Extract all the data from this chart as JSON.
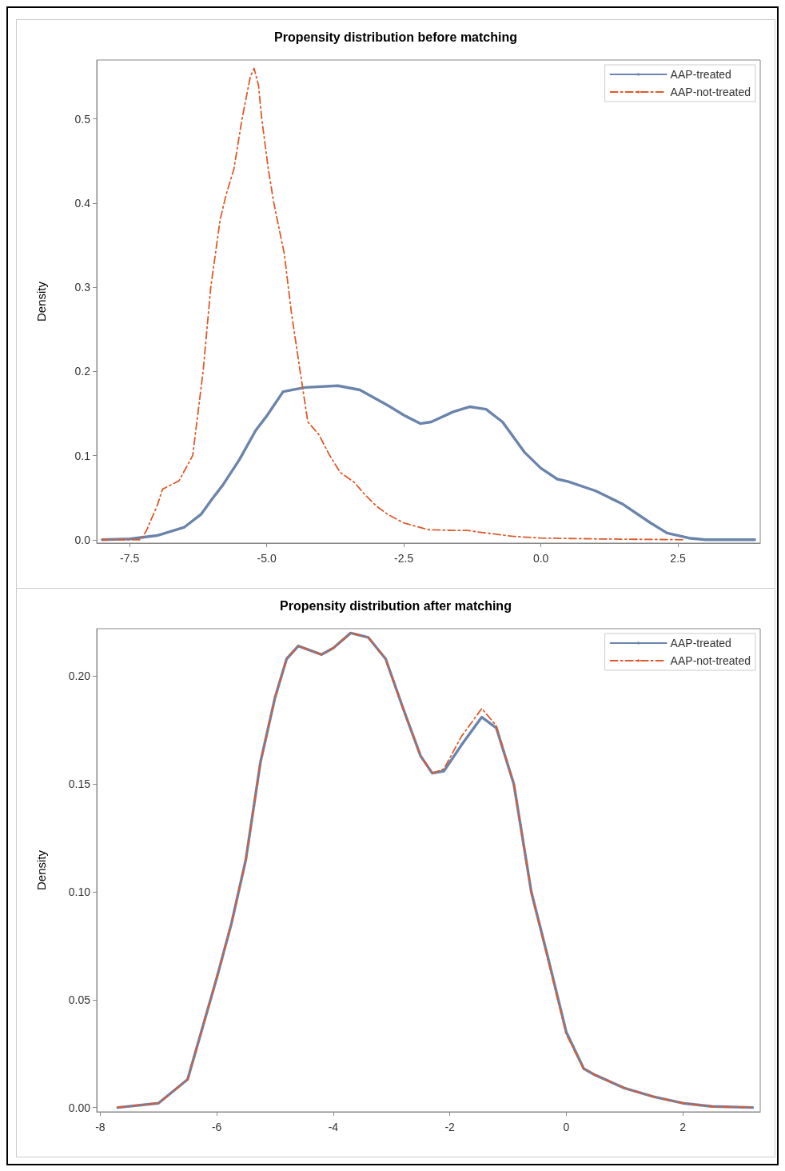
{
  "chart_data": [
    {
      "type": "line",
      "title": "Propensity distribution before matching",
      "ylabel": "Density",
      "xlim": [
        -8.1,
        4.0
      ],
      "xticks": [
        -7.5,
        {
          "value": -5,
          "label": "-5.0"
        },
        -2.5,
        {
          "value": 0,
          "label": "0.0"
        },
        2.5
      ],
      "ylim": [
        -0.004,
        0.57
      ],
      "yticks": [
        {
          "value": 0,
          "label": "0.0"
        },
        0.1,
        0.2,
        0.3,
        0.4,
        0.5
      ],
      "grid": false,
      "legend": "top right",
      "marker": "none",
      "series": [
        {
          "name": "AAP-treated",
          "color": "#6b84ac",
          "line_style": "solid",
          "x": [
            -8.0,
            -7.5,
            -7.0,
            -6.5,
            -6.2,
            -6.0,
            -5.8,
            -5.5,
            -5.2,
            -5.0,
            -4.7,
            -4.3,
            -3.7,
            -3.3,
            -2.8,
            -2.5,
            -2.2,
            -2.0,
            -1.6,
            -1.3,
            -1.0,
            -0.7,
            -0.3,
            0.0,
            0.3,
            0.5,
            1.0,
            1.5,
            2.0,
            2.3,
            2.7,
            3.0,
            3.9
          ],
          "values": [
            0,
            0.001,
            0.005,
            0.015,
            0.03,
            0.048,
            0.065,
            0.095,
            0.13,
            0.147,
            0.176,
            0.181,
            0.183,
            0.178,
            0.16,
            0.148,
            0.138,
            0.14,
            0.152,
            0.158,
            0.155,
            0.14,
            0.104,
            0.085,
            0.072,
            0.069,
            0.058,
            0.042,
            0.02,
            0.008,
            0.002,
            0,
            0
          ]
        },
        {
          "name": "AAP-not-treated",
          "color": "#e0592a",
          "line_style": "dashed",
          "x": [
            -8.0,
            -7.3,
            -7.2,
            -7.0,
            -6.9,
            -6.6,
            -6.35,
            -6.16,
            -6.02,
            -5.85,
            -5.74,
            -5.6,
            -5.45,
            -5.3,
            -5.23,
            -5.15,
            -5.09,
            -4.97,
            -4.87,
            -4.68,
            -4.55,
            -4.39,
            -4.25,
            -4.05,
            -3.85,
            -3.66,
            -3.4,
            -3.23,
            -3.0,
            -2.79,
            -2.5,
            -2.06,
            -1.6,
            -1.34,
            -1.0,
            -0.5,
            0.0,
            1.0,
            2.6
          ],
          "values": [
            0,
            0,
            0.01,
            0.04,
            0.06,
            0.07,
            0.1,
            0.2,
            0.3,
            0.38,
            0.41,
            0.44,
            0.5,
            0.55,
            0.56,
            0.54,
            0.5,
            0.44,
            0.4,
            0.34,
            0.27,
            0.2,
            0.14,
            0.125,
            0.1,
            0.08,
            0.068,
            0.055,
            0.04,
            0.03,
            0.02,
            0.012,
            0.011,
            0.011,
            0.008,
            0.004,
            0.002,
            0.001,
            0
          ]
        }
      ]
    },
    {
      "type": "line",
      "title": "Propensity distribution after matching",
      "ylabel": "Density",
      "xlim": [
        -8.06,
        3.33
      ],
      "xticks": [
        -8,
        -6,
        -4,
        -2,
        0,
        2
      ],
      "ylim": [
        -0.002,
        0.222
      ],
      "yticks": [
        {
          "value": 0,
          "label": "0.00"
        },
        0.05,
        {
          "value": 0.1,
          "label": "0.10"
        },
        0.15,
        {
          "value": 0.2,
          "label": "0.20"
        }
      ],
      "grid": false,
      "legend": "top right",
      "marker": "none",
      "series": [
        {
          "name": "AAP-treated",
          "color": "#6b84ac",
          "line_style": "solid",
          "x": [
            -7.7,
            -7.0,
            -6.5,
            -6.0,
            -5.75,
            -5.5,
            -5.25,
            -5.0,
            -4.8,
            -4.6,
            -4.2,
            -4.0,
            -3.7,
            -3.4,
            -3.1,
            -2.8,
            -2.5,
            -2.3,
            -2.1,
            -1.8,
            -1.45,
            -1.2,
            -0.9,
            -0.6,
            -0.3,
            0.0,
            0.3,
            0.5,
            1.0,
            1.5,
            2.0,
            2.5,
            3.2
          ],
          "values": [
            0,
            0.002,
            0.013,
            0.06,
            0.085,
            0.115,
            0.16,
            0.19,
            0.208,
            0.214,
            0.21,
            0.213,
            0.22,
            0.218,
            0.208,
            0.185,
            0.163,
            0.155,
            0.156,
            0.168,
            0.181,
            0.176,
            0.15,
            0.1,
            0.068,
            0.035,
            0.018,
            0.015,
            0.009,
            0.005,
            0.002,
            0.0005,
            0
          ]
        },
        {
          "name": "AAP-not-treated",
          "color": "#e0592a",
          "line_style": "dashed",
          "x": [
            -7.7,
            -7.0,
            -6.5,
            -6.0,
            -5.75,
            -5.5,
            -5.25,
            -5.0,
            -4.8,
            -4.6,
            -4.2,
            -4.0,
            -3.7,
            -3.4,
            -3.1,
            -2.8,
            -2.5,
            -2.3,
            -2.1,
            -1.8,
            -1.45,
            -1.2,
            -0.9,
            -0.6,
            -0.3,
            0.0,
            0.3,
            0.5,
            1.0,
            1.5,
            2.0,
            2.5,
            3.2
          ],
          "values": [
            0,
            0.002,
            0.013,
            0.06,
            0.085,
            0.115,
            0.16,
            0.19,
            0.208,
            0.214,
            0.21,
            0.213,
            0.22,
            0.218,
            0.208,
            0.185,
            0.163,
            0.155,
            0.157,
            0.172,
            0.185,
            0.177,
            0.15,
            0.1,
            0.067,
            0.034,
            0.018,
            0.015,
            0.009,
            0.005,
            0.002,
            0.0005,
            0
          ]
        }
      ]
    }
  ]
}
